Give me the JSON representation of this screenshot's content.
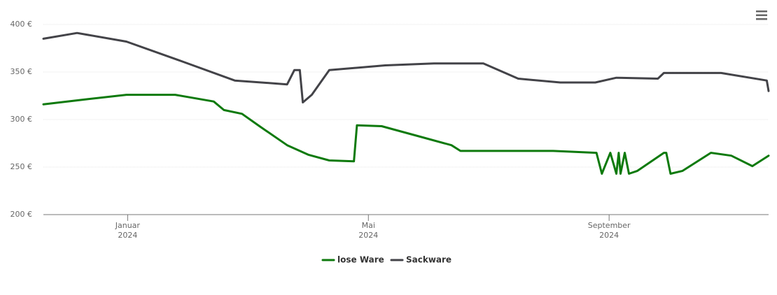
{
  "chart_data": {
    "type": "line",
    "ylim": [
      200,
      400
    ],
    "yticks": [
      {
        "value": 200,
        "label": "200 €"
      },
      {
        "value": 250,
        "label": "250 €"
      },
      {
        "value": 300,
        "label": "300 €"
      },
      {
        "value": 350,
        "label": "350 €"
      },
      {
        "value": 400,
        "label": "400 €"
      }
    ],
    "xlim": [
      -0.4,
      11.65
    ],
    "xticks": [
      {
        "value": 1,
        "label": [
          "Januar",
          "2024"
        ]
      },
      {
        "value": 5,
        "label": [
          "Mai",
          "2024"
        ]
      },
      {
        "value": 9,
        "label": [
          "September",
          "2024"
        ]
      }
    ],
    "grid": true,
    "legend": "bottom",
    "series": [
      {
        "name": "lose Ware",
        "color": "#0e7a0d",
        "x": [
          -0.4,
          0.28,
          0.98,
          1.79,
          2.43,
          2.6,
          2.9,
          3.19,
          3.65,
          4.0,
          4.35,
          4.76,
          4.81,
          5.22,
          5.86,
          6.38,
          6.53,
          7.02,
          8.07,
          8.79,
          8.88,
          9.02,
          9.12,
          9.16,
          9.19,
          9.26,
          9.33,
          9.47,
          9.91,
          9.95,
          10.02,
          10.22,
          10.69,
          11.03,
          11.38,
          11.65
        ],
        "values": [
          316,
          321,
          326,
          326,
          319,
          310,
          306,
          293,
          273,
          263,
          257,
          256,
          294,
          293,
          282,
          273,
          267,
          267,
          267,
          265,
          243,
          265,
          243,
          265,
          243,
          265,
          243,
          246,
          265,
          265,
          243,
          246,
          265,
          262,
          251,
          262
        ]
      },
      {
        "name": "Sackware",
        "color": "#434348",
        "x": [
          -0.4,
          0.16,
          0.98,
          1.91,
          2.78,
          3.65,
          3.77,
          3.86,
          3.91,
          4.06,
          4.35,
          5.28,
          6.09,
          6.91,
          7.49,
          8.19,
          8.77,
          9.12,
          9.81,
          9.91,
          10.86,
          11.62,
          11.65
        ],
        "values": [
          385,
          391,
          382,
          361,
          341,
          337,
          352,
          352,
          318,
          326,
          352,
          357,
          359,
          359,
          343,
          339,
          339,
          344,
          343,
          349,
          349,
          341,
          330
        ]
      }
    ]
  }
}
